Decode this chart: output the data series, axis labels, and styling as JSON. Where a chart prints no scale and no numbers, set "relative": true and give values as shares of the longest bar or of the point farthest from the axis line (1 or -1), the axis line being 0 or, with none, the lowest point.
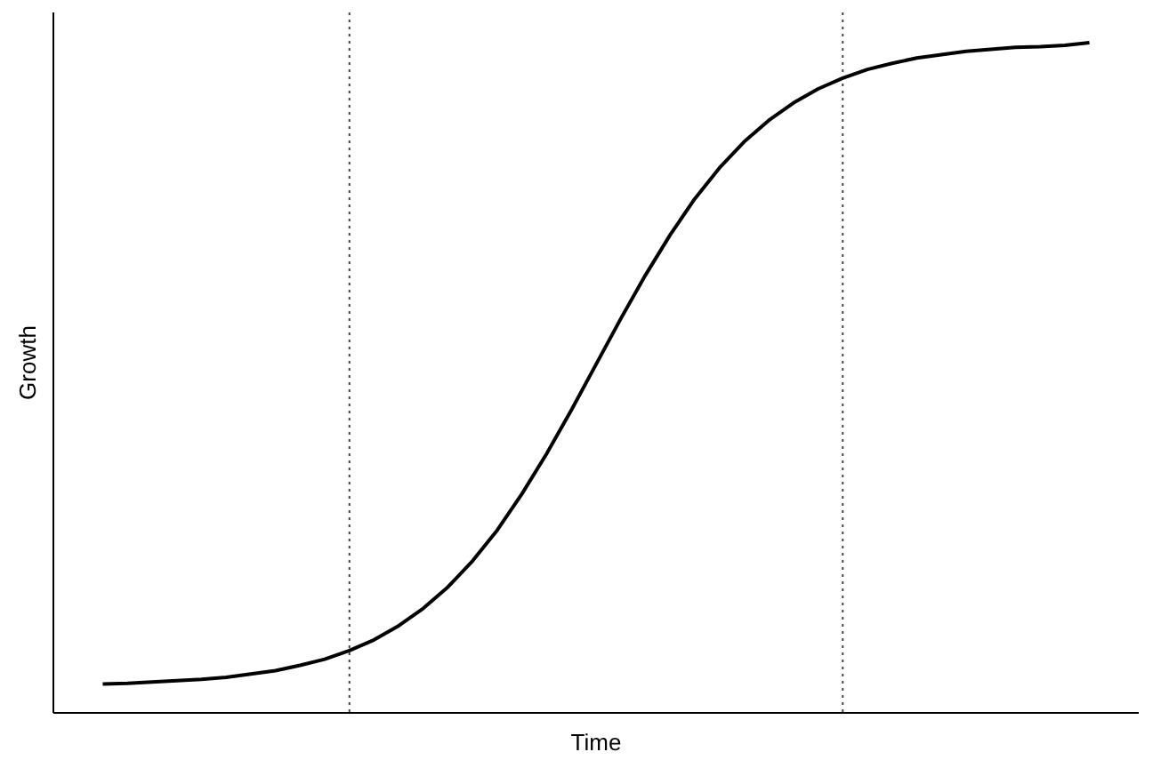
{
  "chart_data": {
    "type": "line",
    "relative": true,
    "xlabel": "Time",
    "ylabel": "Growth",
    "categories": [
      null,
      null,
      null,
      null,
      null,
      null,
      null,
      null,
      null,
      null,
      null,
      null,
      null,
      null,
      null,
      null,
      null,
      null,
      null,
      null,
      null,
      null,
      null,
      null,
      null,
      null,
      null,
      null,
      null,
      null,
      null,
      null,
      null,
      null,
      null,
      null,
      null,
      null,
      null,
      null,
      null
    ],
    "series": [
      {
        "color": "#000000",
        "values": [
          0.043,
          0.044,
          0.046,
          0.048,
          0.05,
          0.053,
          0.058,
          0.063,
          0.071,
          0.08,
          0.093,
          0.109,
          0.13,
          0.156,
          0.188,
          0.227,
          0.273,
          0.327,
          0.387,
          0.452,
          0.52,
          0.588,
          0.653,
          0.713,
          0.767,
          0.813,
          0.852,
          0.884,
          0.91,
          0.931,
          0.947,
          0.96,
          0.969,
          0.977,
          0.982,
          0.987,
          0.99,
          0.993,
          0.994,
          0.996,
          1
        ]
      }
    ],
    "marker": "none",
    "line_style": "solid"
  }
}
